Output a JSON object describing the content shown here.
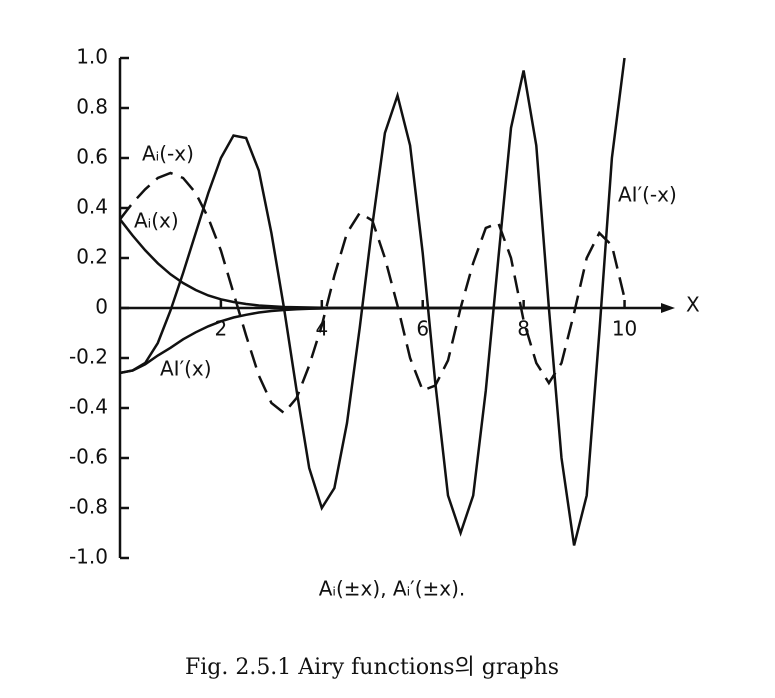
{
  "chart_data": {
    "type": "line",
    "x_label": "X",
    "subtitle": "Aᵢ(±x), Aᵢ′(±x).",
    "caption": "Fig. 2.5.1  Airy functions의 graphs",
    "xlim": [
      0,
      11
    ],
    "ylim": [
      -1,
      1
    ],
    "xticks": [
      2,
      4,
      6,
      8,
      10
    ],
    "yticks": [
      {
        "value": -1,
        "label": "-1.0"
      },
      -0.8,
      -0.6,
      -0.4,
      -0.2,
      0,
      0.2,
      0.4,
      0.6,
      0.8,
      {
        "value": 1,
        "label": "1.0"
      }
    ],
    "x": [
      0,
      0.25,
      0.5,
      0.75,
      1,
      1.25,
      1.5,
      1.75,
      2,
      2.25,
      2.5,
      2.75,
      3,
      3.25,
      3.5,
      3.75,
      4,
      4.25,
      4.5,
      4.75,
      5,
      5.25,
      5.5,
      5.75,
      6,
      6.25,
      6.5,
      6.75,
      7,
      7.25,
      7.5,
      7.75,
      8,
      8.25,
      8.5,
      8.75,
      9,
      9.25,
      9.5,
      9.75,
      10
    ],
    "series": [
      {
        "name": "Aᵢ(-x)",
        "color": "#111",
        "dash": "dashed",
        "values": [
          0.355,
          0.42,
          0.475,
          0.52,
          0.54,
          0.52,
          0.46,
          0.36,
          0.23,
          0.06,
          -0.11,
          -0.27,
          -0.38,
          -0.42,
          -0.36,
          -0.23,
          -0.07,
          0.13,
          0.3,
          0.38,
          0.35,
          0.2,
          0.01,
          -0.2,
          -0.33,
          -0.31,
          -0.21,
          0,
          0.18,
          0.32,
          0.34,
          0.2,
          -0.05,
          -0.22,
          -0.3,
          -0.22,
          -0.02,
          0.2,
          0.3,
          0.25,
          0.04
        ]
      },
      {
        "name": "Aᵢ(x)",
        "color": "#111",
        "dash": "solid",
        "values": [
          0.355,
          0.29,
          0.231,
          0.179,
          0.135,
          0.1,
          0.072,
          0.05,
          0.035,
          0.024,
          0.016,
          0.01,
          0.007,
          0.004,
          0.003,
          0.002,
          0.001,
          0,
          0,
          0,
          0,
          0,
          0,
          0,
          0,
          0,
          0,
          0,
          0,
          0,
          0,
          0,
          0,
          0,
          0,
          null,
          null,
          null,
          null,
          null,
          null
        ]
      },
      {
        "name": "AI′(x)",
        "color": "#111",
        "dash": "solid",
        "values": [
          -0.259,
          -0.25,
          -0.225,
          -0.19,
          -0.159,
          -0.125,
          -0.097,
          -0.073,
          -0.053,
          -0.038,
          -0.027,
          -0.018,
          -0.012,
          -0.008,
          -0.005,
          -0.003,
          -0.002,
          0,
          0,
          0,
          0,
          0,
          0,
          0,
          0,
          0,
          0,
          0,
          0,
          0,
          0,
          0,
          0,
          0,
          0,
          null,
          null,
          null,
          null,
          null,
          null
        ]
      },
      {
        "name": "AI′(-x)",
        "color": "#111",
        "dash": "solid",
        "values": [
          -0.26,
          -0.25,
          -0.22,
          -0.14,
          -0.01,
          0.14,
          0.3,
          0.46,
          0.6,
          0.69,
          0.68,
          0.55,
          0.3,
          0,
          -0.33,
          -0.64,
          -0.8,
          -0.72,
          -0.46,
          -0.08,
          0.33,
          0.7,
          0.85,
          0.65,
          0.22,
          -0.3,
          -0.75,
          -0.9,
          -0.75,
          -0.33,
          0.2,
          0.72,
          0.95,
          0.65,
          0,
          -0.6,
          -0.95,
          -0.75,
          -0.1,
          0.6,
          1
        ]
      }
    ]
  }
}
